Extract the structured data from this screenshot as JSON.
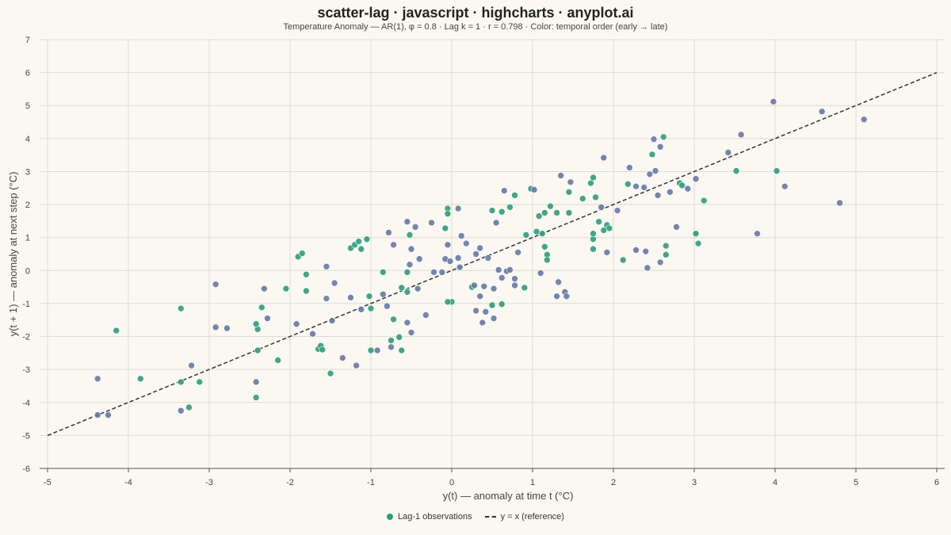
{
  "title": "scatter-lag · javascript · highcharts · anyplot.ai",
  "subtitle": "Temperature Anomaly — AR(1), φ = 0.8 · Lag k = 1 · r = 0.798 · Color: temporal order (early → late)",
  "colors": {
    "background": "#faf8f1",
    "grid": "#dedbd2",
    "axis": "#555555",
    "early": "#2a9d7a",
    "late": "#6478a8",
    "reference": "#333333"
  },
  "chart_data": {
    "type": "scatter",
    "title": "scatter-lag · javascript · highcharts · anyplot.ai",
    "subtitle": "Temperature Anomaly — AR(1), φ = 0.8 · Lag k = 1 · r = 0.798 · Color: temporal order (early → late)",
    "xlabel": "y(t) — anomaly at time t (°C)",
    "ylabel": "y(t + 1) — anomaly at next step (°C)",
    "xlim": [
      -5,
      6
    ],
    "ylim": [
      -6,
      7
    ],
    "x_ticks": [
      "-5",
      "-4",
      "-3",
      "-2",
      "-1",
      "0",
      "1",
      "2",
      "3",
      "4",
      "5",
      "6"
    ],
    "y_ticks": [
      "-6",
      "-5",
      "-4",
      "-3",
      "-2",
      "-1",
      "0",
      "1",
      "2",
      "3",
      "4",
      "5",
      "6",
      "7"
    ],
    "grid": true,
    "legend_position": "bottom-center",
    "series": [
      {
        "name": "Lag-1 observations",
        "color_by": "temporal order (early → late)",
        "points": [
          [
            -4.15,
            -1.82
          ],
          [
            -3.85,
            -3.28
          ],
          [
            -3.35,
            -1.15
          ],
          [
            -3.35,
            -3.38
          ],
          [
            -3.25,
            -4.15
          ],
          [
            -3.12,
            -3.38
          ],
          [
            -2.42,
            -3.85
          ],
          [
            -2.4,
            -1.78
          ],
          [
            -2.4,
            -2.42
          ],
          [
            -2.42,
            -1.62
          ],
          [
            -2.35,
            -1.12
          ],
          [
            -2.15,
            -2.72
          ],
          [
            -2.05,
            -0.55
          ],
          [
            -1.9,
            0.42
          ],
          [
            -1.85,
            0.52
          ],
          [
            -1.8,
            -0.12
          ],
          [
            -1.8,
            -0.62
          ],
          [
            -1.65,
            -2.38
          ],
          [
            -1.62,
            -2.28
          ],
          [
            -1.6,
            -2.4
          ],
          [
            -1.5,
            -3.12
          ],
          [
            -1.25,
            0.68
          ],
          [
            -1.2,
            0.78
          ],
          [
            -1.15,
            0.88
          ],
          [
            -1.12,
            0.65
          ],
          [
            -1.05,
            0.95
          ],
          [
            -1.02,
            -0.78
          ],
          [
            -1.0,
            -1.15
          ],
          [
            -1.0,
            -2.42
          ],
          [
            -0.85,
            -0.05
          ],
          [
            -0.75,
            -2.12
          ],
          [
            -0.72,
            -1.48
          ],
          [
            -0.65,
            -2.02
          ],
          [
            -0.62,
            -2.42
          ],
          [
            -0.62,
            -0.52
          ],
          [
            -0.55,
            -0.65
          ],
          [
            -0.55,
            -0.05
          ],
          [
            -0.52,
            1.08
          ],
          [
            -0.05,
            1.88
          ],
          [
            -0.05,
            1.72
          ],
          [
            -0.08,
            1.28
          ],
          [
            0.0,
            -0.95
          ],
          [
            0.5,
            1.82
          ],
          [
            0.62,
            1.78
          ],
          [
            0.72,
            1.92
          ],
          [
            0.78,
            2.28
          ],
          [
            0.92,
            1.08
          ],
          [
            0.98,
            2.48
          ],
          [
            1.05,
            1.18
          ],
          [
            1.08,
            1.65
          ],
          [
            1.12,
            1.12
          ],
          [
            1.15,
            1.75
          ],
          [
            1.15,
            0.72
          ],
          [
            1.18,
            0.48
          ],
          [
            1.18,
            0.32
          ],
          [
            1.22,
            1.95
          ],
          [
            1.3,
            1.75
          ],
          [
            1.45,
            1.75
          ],
          [
            1.45,
            2.38
          ],
          [
            1.62,
            2.18
          ],
          [
            1.72,
            2.65
          ],
          [
            1.75,
            2.82
          ],
          [
            1.75,
            0.95
          ],
          [
            1.75,
            1.12
          ],
          [
            1.75,
            0.65
          ],
          [
            1.78,
            2.22
          ],
          [
            1.82,
            1.48
          ],
          [
            1.88,
            1.22
          ],
          [
            1.92,
            1.38
          ],
          [
            1.95,
            1.28
          ],
          [
            2.12,
            0.32
          ],
          [
            2.18,
            2.62
          ],
          [
            2.48,
            3.52
          ],
          [
            2.62,
            4.05
          ],
          [
            2.82,
            2.65
          ],
          [
            2.85,
            2.58
          ],
          [
            2.65,
            0.75
          ],
          [
            2.65,
            0.48
          ],
          [
            3.02,
            1.12
          ],
          [
            3.05,
            0.82
          ],
          [
            3.12,
            2.12
          ],
          [
            3.52,
            3.02
          ],
          [
            4.02,
            3.02
          ],
          [
            0.62,
            -1.02
          ],
          [
            0.5,
            -1.05
          ],
          [
            -0.05,
            -0.95
          ],
          [
            0.9,
            -0.52
          ],
          [
            0.25,
            -0.5
          ]
        ]
      },
      {
        "name": "Lag-1 observations",
        "color_by": "temporal order (early → late)",
        "points": [
          [
            -4.38,
            -3.28
          ],
          [
            -4.38,
            -4.38
          ],
          [
            -4.25,
            -4.38
          ],
          [
            -3.35,
            -4.25
          ],
          [
            -3.22,
            -2.88
          ],
          [
            -2.92,
            -0.42
          ],
          [
            -2.92,
            -1.72
          ],
          [
            -2.78,
            -1.75
          ],
          [
            -2.42,
            -3.38
          ],
          [
            -2.32,
            -0.55
          ],
          [
            -2.28,
            -1.45
          ],
          [
            -1.92,
            -1.62
          ],
          [
            -1.72,
            -1.92
          ],
          [
            -1.55,
            0.12
          ],
          [
            -1.55,
            -0.85
          ],
          [
            -1.48,
            -1.52
          ],
          [
            -1.45,
            -0.38
          ],
          [
            -1.35,
            -2.65
          ],
          [
            -1.25,
            -0.82
          ],
          [
            -1.18,
            -2.88
          ],
          [
            -1.12,
            -1.18
          ],
          [
            -0.92,
            -2.42
          ],
          [
            -0.85,
            -0.72
          ],
          [
            -0.8,
            -1.08
          ],
          [
            -0.78,
            1.15
          ],
          [
            -0.75,
            -2.32
          ],
          [
            -0.72,
            0.78
          ],
          [
            -0.55,
            1.48
          ],
          [
            -0.55,
            -1.58
          ],
          [
            -0.5,
            0.65
          ],
          [
            -0.52,
            0.18
          ],
          [
            -0.5,
            -1.88
          ],
          [
            -0.45,
            1.32
          ],
          [
            -0.42,
            -0.55
          ],
          [
            -0.4,
            0.35
          ],
          [
            -0.32,
            -1.35
          ],
          [
            -0.25,
            1.45
          ],
          [
            -0.22,
            -0.05
          ],
          [
            -0.12,
            -0.05
          ],
          [
            -0.08,
            0.35
          ],
          [
            -0.05,
            0.78
          ],
          [
            -0.02,
            0.28
          ],
          [
            0.08,
            0.38
          ],
          [
            0.1,
            0.1
          ],
          [
            0.12,
            1.05
          ],
          [
            0.08,
            1.88
          ],
          [
            0.18,
            0.82
          ],
          [
            0.28,
            -0.45
          ],
          [
            0.3,
            0.5
          ],
          [
            0.3,
            -1.22
          ],
          [
            0.35,
            0.68
          ],
          [
            0.35,
            -0.78
          ],
          [
            0.38,
            -1.58
          ],
          [
            0.4,
            -0.48
          ],
          [
            0.42,
            -1.25
          ],
          [
            0.45,
            0.38
          ],
          [
            0.52,
            -0.55
          ],
          [
            0.52,
            -1.45
          ],
          [
            0.55,
            1.45
          ],
          [
            0.58,
            0.02
          ],
          [
            0.62,
            -0.22
          ],
          [
            0.65,
            2.42
          ],
          [
            0.68,
            -0.02
          ],
          [
            0.72,
            0.02
          ],
          [
            0.78,
            -0.25
          ],
          [
            0.78,
            -0.45
          ],
          [
            0.82,
            0.55
          ],
          [
            1.02,
            2.45
          ],
          [
            1.1,
            -0.08
          ],
          [
            1.3,
            -0.78
          ],
          [
            1.32,
            -0.35
          ],
          [
            1.35,
            2.88
          ],
          [
            1.4,
            -0.65
          ],
          [
            1.42,
            -0.78
          ],
          [
            1.47,
            2.68
          ],
          [
            1.85,
            1.92
          ],
          [
            1.88,
            3.42
          ],
          [
            1.92,
            0.55
          ],
          [
            2.05,
            1.82
          ],
          [
            2.2,
            3.12
          ],
          [
            2.28,
            2.55
          ],
          [
            2.28,
            0.62
          ],
          [
            2.38,
            2.52
          ],
          [
            2.4,
            0.58
          ],
          [
            2.42,
            0.08
          ],
          [
            2.45,
            2.92
          ],
          [
            2.5,
            3.98
          ],
          [
            2.52,
            3.02
          ],
          [
            2.55,
            2.28
          ],
          [
            2.58,
            0.25
          ],
          [
            2.58,
            3.75
          ],
          [
            2.7,
            2.38
          ],
          [
            2.78,
            1.32
          ],
          [
            2.92,
            2.48
          ],
          [
            3.02,
            2.78
          ],
          [
            3.42,
            3.58
          ],
          [
            3.58,
            4.12
          ],
          [
            3.78,
            1.12
          ],
          [
            3.98,
            5.12
          ],
          [
            4.12,
            2.55
          ],
          [
            4.58,
            4.82
          ],
          [
            4.8,
            2.05
          ],
          [
            5.1,
            4.58
          ]
        ]
      },
      {
        "name": "y = x (reference)",
        "type": "line",
        "style": "dashed",
        "points": [
          [
            -5,
            -5
          ],
          [
            6,
            6
          ]
        ]
      }
    ]
  },
  "legend": {
    "observations_label": "Lag-1 observations",
    "reference_label": "y = x (reference)"
  }
}
